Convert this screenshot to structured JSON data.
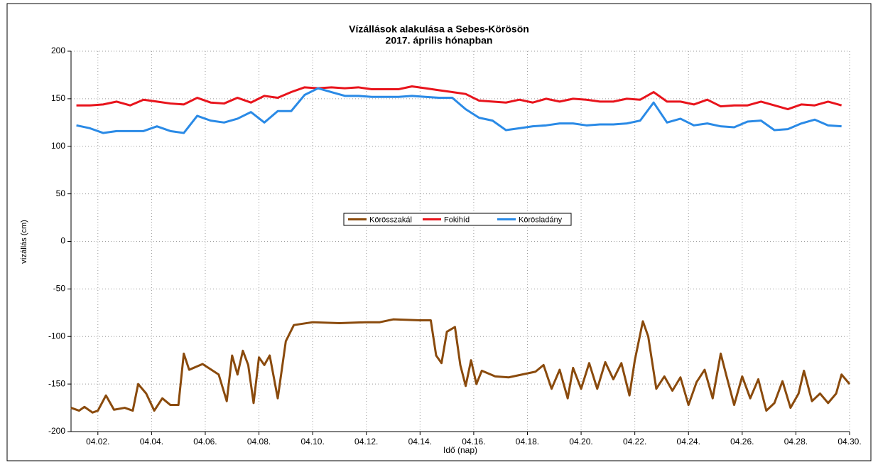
{
  "chart_data": {
    "type": "line",
    "title": "Vízállások alakulása a Sebes-Körösön",
    "subtitle": "2017. április hónapban",
    "xlabel": "Idő (nap)",
    "ylabel": "vízállás (cm)",
    "xlim": [
      1,
      30
    ],
    "ylim": [
      -200,
      200
    ],
    "xticks": [
      {
        "value": 2,
        "label": "04.02."
      },
      {
        "value": 4,
        "label": "04.04."
      },
      {
        "value": 6,
        "label": "04.06."
      },
      {
        "value": 8,
        "label": "04.08."
      },
      {
        "value": 10,
        "label": "04.10."
      },
      {
        "value": 12,
        "label": "04.12."
      },
      {
        "value": 14,
        "label": "04.14."
      },
      {
        "value": 16,
        "label": "04.16."
      },
      {
        "value": 18,
        "label": "04.18."
      },
      {
        "value": 20,
        "label": "04.20."
      },
      {
        "value": 22,
        "label": "04.22."
      },
      {
        "value": 24,
        "label": "04.24."
      },
      {
        "value": 26,
        "label": "04.26."
      },
      {
        "value": 28,
        "label": "04.28."
      },
      {
        "value": 30,
        "label": "04.30."
      }
    ],
    "yticks": [
      -200,
      -150,
      -100,
      -50,
      0,
      50,
      100,
      150,
      200
    ],
    "grid": true,
    "legend": "center",
    "series": [
      {
        "name": "Körösszakál",
        "color": "#8a4a0c",
        "x": [
          1,
          1.3,
          1.5,
          1.8,
          2,
          2.3,
          2.6,
          3,
          3.3,
          3.5,
          3.8,
          4.1,
          4.4,
          4.7,
          5,
          5.2,
          5.4,
          5.9,
          6.5,
          6.8,
          7,
          7.2,
          7.4,
          7.6,
          7.8,
          8,
          8.2,
          8.4,
          8.7,
          9,
          9.3,
          10,
          11,
          12,
          12.5,
          13,
          14,
          14.4,
          14.6,
          14.8,
          15,
          15.3,
          15.5,
          15.7,
          15.9,
          16.1,
          16.3,
          16.8,
          17.3,
          18.3,
          18.6,
          18.9,
          19.2,
          19.5,
          19.7,
          20,
          20.3,
          20.6,
          20.9,
          21.2,
          21.5,
          21.8,
          22,
          22.3,
          22.5,
          22.8,
          23.1,
          23.4,
          23.7,
          24,
          24.3,
          24.6,
          24.9,
          25.2,
          25.4,
          25.7,
          26,
          26.3,
          26.6,
          26.9,
          27.2,
          27.5,
          27.8,
          28.1,
          28.3,
          28.6,
          28.9,
          29.2,
          29.5,
          29.7,
          30
        ],
        "values": [
          -175,
          -178,
          -174,
          -180,
          -178,
          -162,
          -177,
          -175,
          -178,
          -150,
          -160,
          -178,
          -165,
          -172,
          -172,
          -118,
          -135,
          -129,
          -140,
          -168,
          -120,
          -140,
          -115,
          -130,
          -170,
          -122,
          -130,
          -120,
          -165,
          -105,
          -88,
          -85,
          -86,
          -85,
          -85,
          -82,
          -83,
          -83,
          -120,
          -128,
          -95,
          -90,
          -130,
          -152,
          -125,
          -150,
          -136,
          -142,
          -143,
          -137,
          -130,
          -155,
          -135,
          -165,
          -133,
          -155,
          -128,
          -155,
          -127,
          -145,
          -128,
          -162,
          -125,
          -84,
          -100,
          -155,
          -142,
          -157,
          -143,
          -172,
          -148,
          -135,
          -165,
          -118,
          -140,
          -172,
          -142,
          -165,
          -145,
          -178,
          -170,
          -147,
          -175,
          -160,
          -136,
          -168,
          -160,
          -170,
          -160,
          -140,
          -150
        ]
      },
      {
        "name": "Fokihíd",
        "color": "#e8141c",
        "x": [
          1.2,
          1.7,
          2.2,
          2.7,
          3.2,
          3.7,
          4.2,
          4.7,
          5.2,
          5.7,
          6.2,
          6.7,
          7.2,
          7.7,
          8.2,
          8.7,
          9.2,
          9.7,
          10.2,
          10.7,
          11.2,
          11.7,
          12.2,
          12.7,
          13.2,
          13.7,
          14.2,
          14.7,
          15.2,
          15.7,
          16.2,
          16.7,
          17.2,
          17.7,
          18.2,
          18.7,
          19.2,
          19.7,
          20.2,
          20.7,
          21.2,
          21.7,
          22.2,
          22.7,
          23.2,
          23.7,
          24.2,
          24.7,
          25.2,
          25.7,
          26.2,
          26.7,
          27.2,
          27.7,
          28.2,
          28.7,
          29.2,
          29.7
        ],
        "values": [
          143,
          143,
          144,
          147,
          143,
          149,
          147,
          145,
          144,
          151,
          146,
          145,
          151,
          146,
          153,
          151,
          157,
          162,
          161,
          162,
          161,
          162,
          160,
          160,
          160,
          163,
          161,
          159,
          157,
          155,
          148,
          147,
          146,
          149,
          146,
          150,
          147,
          150,
          149,
          147,
          147,
          150,
          149,
          157,
          147,
          147,
          144,
          149,
          142,
          143,
          143,
          147,
          143,
          139,
          144,
          143,
          147,
          143
        ]
      },
      {
        "name": "Körösladány",
        "color": "#2a8ae6",
        "x": [
          1.2,
          1.7,
          2.2,
          2.7,
          3.2,
          3.7,
          4.2,
          4.7,
          5.2,
          5.7,
          6.2,
          6.7,
          7.2,
          7.7,
          8.2,
          8.7,
          9.2,
          9.7,
          10.2,
          10.7,
          11.2,
          11.7,
          12.2,
          12.7,
          13.2,
          13.7,
          14.2,
          14.7,
          15.2,
          15.7,
          16.2,
          16.7,
          17.2,
          17.7,
          18.2,
          18.7,
          19.2,
          19.7,
          20.2,
          20.7,
          21.2,
          21.7,
          22.2,
          22.7,
          23.2,
          23.7,
          24.2,
          24.7,
          25.2,
          25.7,
          26.2,
          26.7,
          27.2,
          27.7,
          28.2,
          28.7,
          29.2,
          29.7
        ],
        "values": [
          122,
          119,
          114,
          116,
          116,
          116,
          121,
          116,
          114,
          132,
          127,
          125,
          129,
          136,
          125,
          137,
          137,
          154,
          161,
          157,
          153,
          153,
          152,
          152,
          152,
          153,
          152,
          151,
          151,
          139,
          130,
          127,
          117,
          119,
          121,
          122,
          124,
          124,
          122,
          123,
          123,
          124,
          127,
          146,
          125,
          129,
          122,
          124,
          121,
          120,
          126,
          127,
          117,
          118,
          124,
          128,
          122,
          121
        ]
      }
    ]
  }
}
